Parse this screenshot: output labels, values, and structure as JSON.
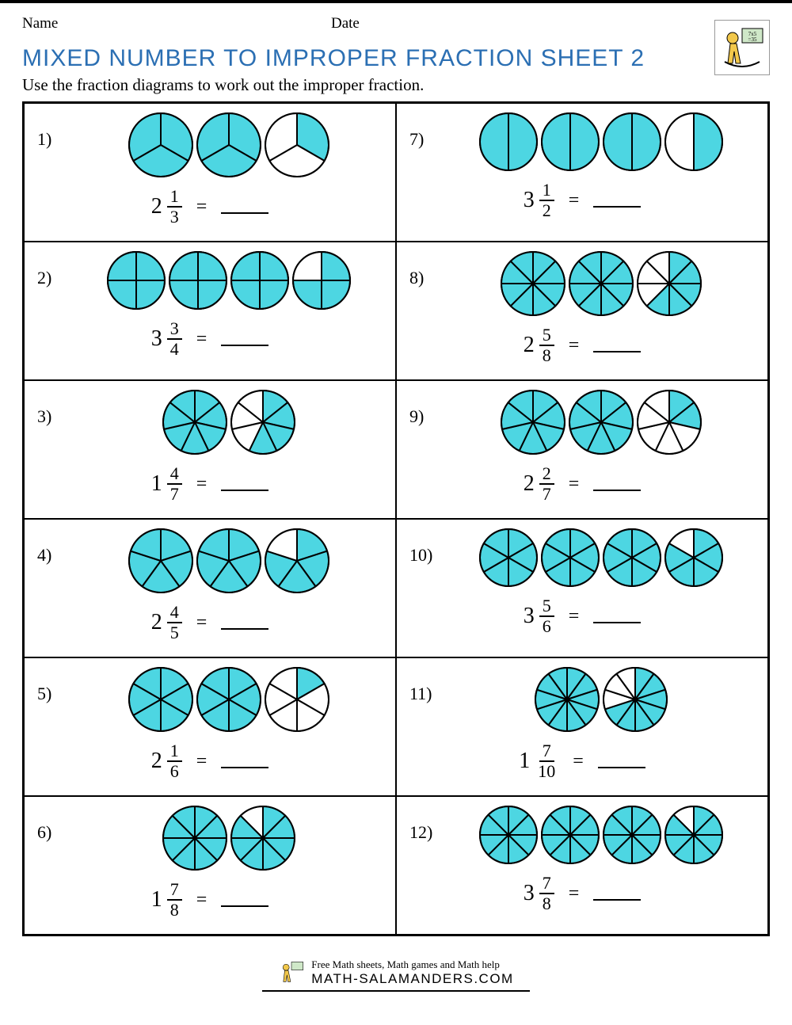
{
  "labels": {
    "name": "Name",
    "date": "Date",
    "title": "MIXED NUMBER TO IMPROPER FRACTION SHEET 2",
    "instruction": "Use the fraction diagrams to work out the improper fraction.",
    "equals": "="
  },
  "footer": {
    "tagline": "Free Math sheets, Math games and Math help",
    "brand": "MATH-SALAMANDERS.COM"
  },
  "style": {
    "fill_color": "#4dd6e2",
    "stroke_color": "#000000",
    "stroke_width": 2,
    "circle_radius": 40,
    "title_color": "#2b6fb3"
  },
  "problems": [
    {
      "num": "1)",
      "whole": 2,
      "numerator": 1,
      "denominator": 3,
      "circles": [
        {
          "d": 3,
          "f": 3
        },
        {
          "d": 3,
          "f": 3
        },
        {
          "d": 3,
          "f": 1
        }
      ]
    },
    {
      "num": "2)",
      "whole": 3,
      "numerator": 3,
      "denominator": 4,
      "circles": [
        {
          "d": 4,
          "f": 4
        },
        {
          "d": 4,
          "f": 4
        },
        {
          "d": 4,
          "f": 4
        },
        {
          "d": 4,
          "f": 3
        }
      ]
    },
    {
      "num": "3)",
      "whole": 1,
      "numerator": 4,
      "denominator": 7,
      "circles": [
        {
          "d": 7,
          "f": 7
        },
        {
          "d": 7,
          "f": 4
        }
      ]
    },
    {
      "num": "4)",
      "whole": 2,
      "numerator": 4,
      "denominator": 5,
      "circles": [
        {
          "d": 5,
          "f": 5
        },
        {
          "d": 5,
          "f": 5
        },
        {
          "d": 5,
          "f": 4
        }
      ]
    },
    {
      "num": "5)",
      "whole": 2,
      "numerator": 1,
      "denominator": 6,
      "circles": [
        {
          "d": 6,
          "f": 6
        },
        {
          "d": 6,
          "f": 6
        },
        {
          "d": 6,
          "f": 1
        }
      ]
    },
    {
      "num": "6)",
      "whole": 1,
      "numerator": 7,
      "denominator": 8,
      "circles": [
        {
          "d": 8,
          "f": 8
        },
        {
          "d": 8,
          "f": 7
        }
      ]
    },
    {
      "num": "7)",
      "whole": 3,
      "numerator": 1,
      "denominator": 2,
      "circles": [
        {
          "d": 2,
          "f": 2
        },
        {
          "d": 2,
          "f": 2
        },
        {
          "d": 2,
          "f": 2
        },
        {
          "d": 2,
          "f": 1
        }
      ]
    },
    {
      "num": "8)",
      "whole": 2,
      "numerator": 5,
      "denominator": 8,
      "circles": [
        {
          "d": 8,
          "f": 8
        },
        {
          "d": 8,
          "f": 8
        },
        {
          "d": 8,
          "f": 5
        }
      ]
    },
    {
      "num": "9)",
      "whole": 2,
      "numerator": 2,
      "denominator": 7,
      "circles": [
        {
          "d": 7,
          "f": 7
        },
        {
          "d": 7,
          "f": 7
        },
        {
          "d": 7,
          "f": 2
        }
      ]
    },
    {
      "num": "10)",
      "whole": 3,
      "numerator": 5,
      "denominator": 6,
      "circles": [
        {
          "d": 6,
          "f": 6
        },
        {
          "d": 6,
          "f": 6
        },
        {
          "d": 6,
          "f": 6
        },
        {
          "d": 6,
          "f": 5
        }
      ]
    },
    {
      "num": "11)",
      "whole": 1,
      "numerator": 7,
      "denominator": 10,
      "circles": [
        {
          "d": 10,
          "f": 10
        },
        {
          "d": 10,
          "f": 7
        }
      ]
    },
    {
      "num": "12)",
      "whole": 3,
      "numerator": 7,
      "denominator": 8,
      "circles": [
        {
          "d": 8,
          "f": 8
        },
        {
          "d": 8,
          "f": 8
        },
        {
          "d": 8,
          "f": 8
        },
        {
          "d": 8,
          "f": 7
        }
      ]
    }
  ]
}
